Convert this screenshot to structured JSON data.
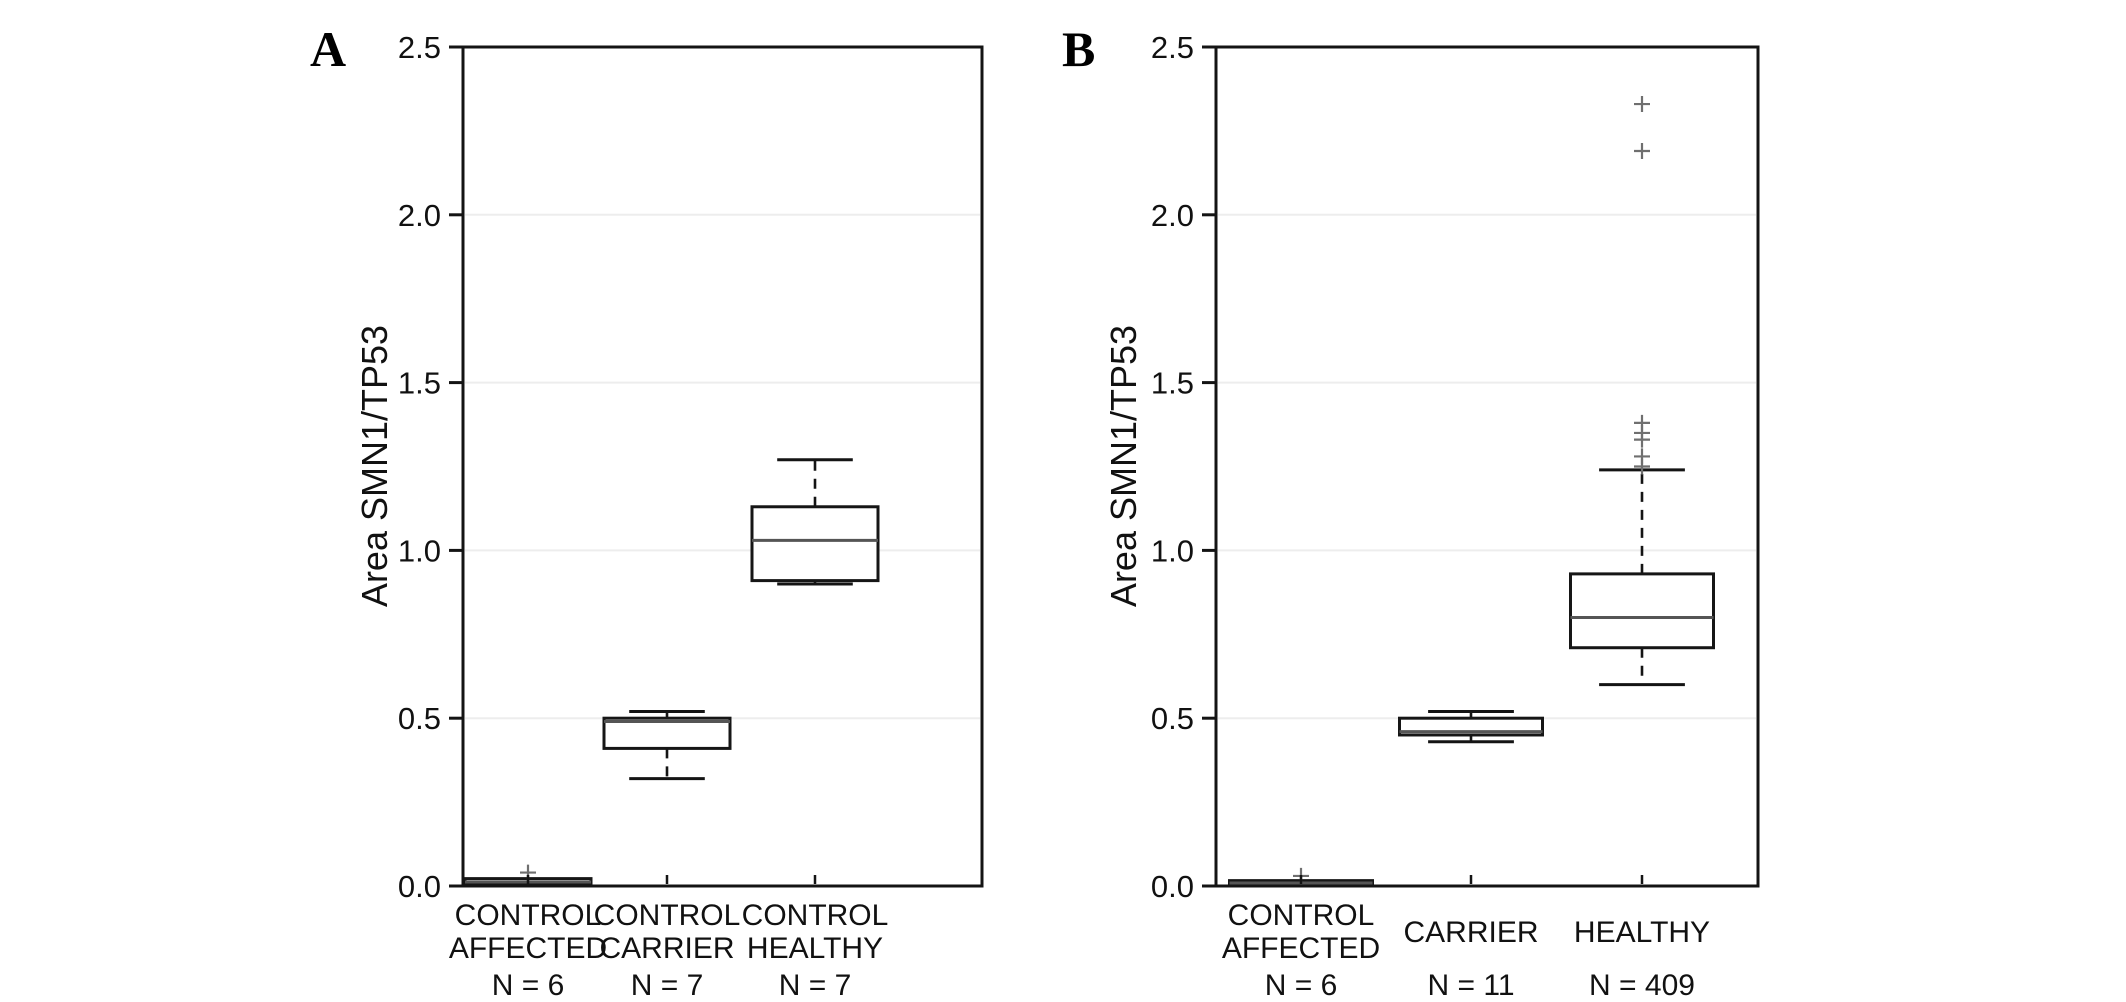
{
  "figure": {
    "background": "#ffffff",
    "text_color": "#111111",
    "box_stroke_color": "#161616",
    "median_color": "#555555",
    "outlier_color": "#6f6f6f",
    "gridline_color": "#ededed"
  },
  "panels": [
    {
      "letter": "A"
    },
    {
      "letter": "B"
    }
  ],
  "chart_data": [
    {
      "type": "boxplot",
      "panel": "A",
      "title": "",
      "xlabel": "",
      "ylabel": "Area SMN1/TP53",
      "ylim": [
        0,
        2.5
      ],
      "yticks": [
        0.0,
        0.5,
        1.0,
        1.5,
        2.0,
        2.5
      ],
      "ytick_labels": [
        "0.0",
        "0.5",
        "1.0",
        "1.5",
        "2.0",
        "2.5"
      ],
      "grid": "horizontal, light gray at each ytick",
      "legend": "none",
      "categories": [
        {
          "label_lines": [
            "CONTROL",
            "AFFECTED"
          ],
          "n_label": "N = 6"
        },
        {
          "label_lines": [
            "CONTROL",
            "CARRIER"
          ],
          "n_label": "N = 7"
        },
        {
          "label_lines": [
            "CONTROL",
            "HEALTHY"
          ],
          "n_label": "N = 7"
        }
      ],
      "boxes": [
        {
          "whisker_low": null,
          "q1": 0.005,
          "median": 0.012,
          "q3": 0.022,
          "whisker_high": null,
          "outliers": [
            0.04
          ]
        },
        {
          "whisker_low": 0.32,
          "q1": 0.41,
          "median": 0.49,
          "q3": 0.5,
          "whisker_high": 0.52,
          "outliers": []
        },
        {
          "whisker_low": 0.9,
          "q1": 0.91,
          "median": 1.03,
          "q3": 1.13,
          "whisker_high": 1.27,
          "outliers": []
        }
      ]
    },
    {
      "type": "boxplot",
      "panel": "B",
      "title": "",
      "xlabel": "",
      "ylabel": "Area SMN1/TP53",
      "ylim": [
        0,
        2.5
      ],
      "yticks": [
        0.0,
        0.5,
        1.0,
        1.5,
        2.0,
        2.5
      ],
      "ytick_labels": [
        "0.0",
        "0.5",
        "1.0",
        "1.5",
        "2.0",
        "2.5"
      ],
      "grid": "horizontal, light gray at each ytick",
      "legend": "none",
      "categories": [
        {
          "label_lines": [
            "CONTROL",
            "AFFECTED"
          ],
          "n_label": "N = 6"
        },
        {
          "label_lines": [
            "CARRIER"
          ],
          "n_label": "N = 11"
        },
        {
          "label_lines": [
            "HEALTHY"
          ],
          "n_label": "N = 409"
        }
      ],
      "boxes": [
        {
          "whisker_low": null,
          "q1": 0.004,
          "median": 0.009,
          "q3": 0.016,
          "whisker_high": null,
          "outliers": [
            0.03
          ]
        },
        {
          "whisker_low": 0.43,
          "q1": 0.45,
          "median": 0.46,
          "q3": 0.5,
          "whisker_high": 0.52,
          "outliers": []
        },
        {
          "whisker_low": 0.6,
          "q1": 0.71,
          "median": 0.8,
          "q3": 0.93,
          "whisker_high": 1.24,
          "outliers": [
            1.25,
            1.28,
            1.33,
            1.35,
            1.38,
            2.19,
            2.33
          ]
        }
      ]
    }
  ]
}
